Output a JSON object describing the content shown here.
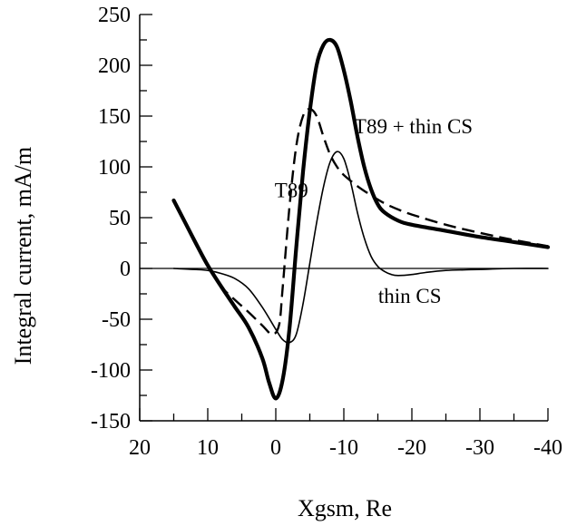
{
  "chart_data": {
    "type": "line",
    "title": "",
    "xlabel": "Xgsm, Re",
    "ylabel": "Integral current, mA/m",
    "xlim": [
      20,
      -40
    ],
    "ylim": [
      -150,
      250
    ],
    "x_reversed": true,
    "x_ticks": [
      20,
      10,
      0,
      -10,
      -20,
      -30,
      -40
    ],
    "y_ticks": [
      250,
      200,
      150,
      100,
      50,
      0,
      -50,
      -100,
      -150
    ],
    "grid": false,
    "legend": "none",
    "zero_line": true,
    "series": [
      {
        "style": "thick-solid",
        "color": "#000000",
        "x": [
          15,
          12,
          10,
          8,
          6,
          4,
          2,
          1,
          0,
          -1,
          -2,
          -3,
          -4,
          -5,
          -6,
          -7,
          -8,
          -9,
          -10,
          -11,
          -12,
          -13,
          -14,
          -15,
          -16,
          -18,
          -20,
          -25,
          -30,
          -35,
          -40
        ],
        "y": [
          67,
          28,
          3,
          -18,
          -38,
          -58,
          -88,
          -112,
          -128,
          -110,
          -60,
          20,
          95,
          155,
          200,
          220,
          225,
          218,
          195,
          165,
          130,
          100,
          78,
          63,
          55,
          47,
          43,
          37,
          31,
          26,
          21
        ]
      },
      {
        "style": "dashed",
        "color": "#000000",
        "x": [
          15,
          12,
          10,
          8,
          6,
          4,
          2,
          0.5,
          -0.5,
          -1,
          -2,
          -3,
          -4,
          -5,
          -6,
          -7,
          -8,
          -9,
          -10,
          -12,
          -14,
          -16,
          -18,
          -20,
          -25,
          -30,
          -35,
          -40
        ],
        "y": [
          67,
          28,
          3,
          -18,
          -31,
          -43,
          -56,
          -65,
          -55,
          -20,
          60,
          120,
          150,
          157,
          150,
          130,
          112,
          100,
          92,
          81,
          72,
          64,
          58,
          53,
          43,
          35,
          28,
          22
        ]
      },
      {
        "style": "thin-solid",
        "color": "#000000",
        "x": [
          15,
          12,
          10,
          8,
          6,
          4,
          2,
          0,
          -1,
          -2,
          -3,
          -4,
          -5,
          -6,
          -7,
          -8,
          -9,
          -10,
          -11,
          -12,
          -13,
          -14,
          -15,
          -16,
          -17,
          -18,
          -20,
          -22,
          -25,
          -30,
          -35,
          -40
        ],
        "y": [
          0,
          -1,
          -2,
          -5,
          -10,
          -20,
          -38,
          -60,
          -70,
          -73,
          -65,
          -35,
          5,
          45,
          80,
          105,
          115,
          108,
          85,
          55,
          30,
          12,
          2,
          -3,
          -6,
          -7,
          -6,
          -4,
          -2,
          -1,
          0,
          0
        ]
      }
    ],
    "annotations": [
      {
        "text": "T89 + thin CS",
        "x": -20.2,
        "y": 133
      },
      {
        "text": "T89",
        "x": -2.3,
        "y": 70
      },
      {
        "text": "thin CS",
        "x": -19.7,
        "y": -34
      }
    ]
  }
}
